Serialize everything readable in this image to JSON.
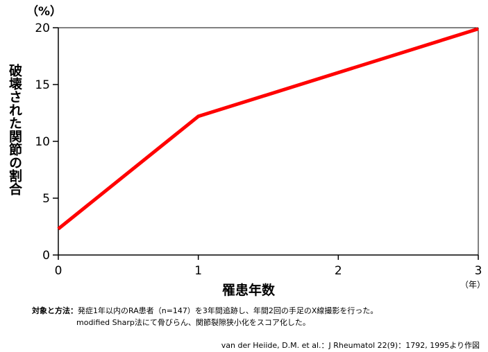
{
  "chart_data": {
    "type": "line",
    "ylabel": "破壊された関節の割合",
    "y_unit": "（%）",
    "xlabel": "罹患年数",
    "x_unit": "（年）",
    "x": [
      0,
      1,
      3
    ],
    "series": [
      {
        "values": [
          2.3,
          12.2,
          19.9
        ],
        "color": "#ff0000"
      }
    ],
    "xlim": [
      0,
      3
    ],
    "ylim": [
      0,
      20
    ],
    "x_ticks": [
      0,
      1,
      2,
      3
    ],
    "y_ticks": [
      0,
      5,
      10,
      15,
      20
    ],
    "grid": false
  },
  "note": {
    "heading": "対象と方法：",
    "line1": "発症1年以内のRA患者（n=147）を3年間追跡し、年間2回の手足のX線撮影を行った。",
    "line2": "modified Sharp法にて骨びらん、関節裂隙狭小化をスコア化した。"
  },
  "source": "van der Heiide, D.M. et al.：J Rheumatol 22(9)：1792, 1995より作図"
}
